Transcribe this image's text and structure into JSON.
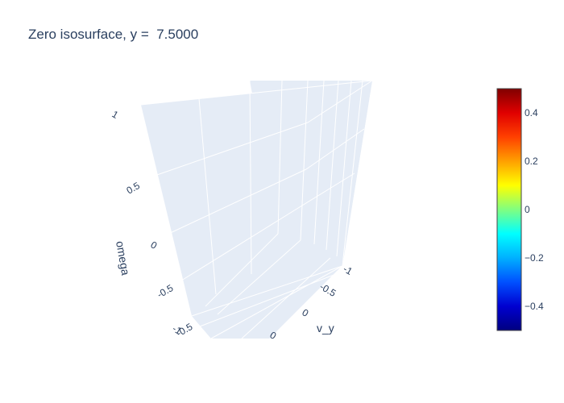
{
  "chart_data": {
    "type": "isosurface",
    "title": "Zero isosurface, y =  7.5000",
    "axes": {
      "x": {
        "label": "",
        "ticks": [
          "-0.5",
          "0"
        ]
      },
      "y": {
        "label": "v_y",
        "ticks": [
          "-1",
          "-0.5",
          "0"
        ]
      },
      "z": {
        "label": "omega",
        "ticks": [
          "-1",
          "-0.5",
          "0",
          "0.5",
          "1"
        ]
      }
    },
    "colorbar": {
      "range": [
        -0.5,
        0.5
      ],
      "ticks": [
        "0.4",
        "0.2",
        "0",
        "−0.2",
        "−0.4"
      ],
      "tick_values": [
        0.4,
        0.2,
        0,
        -0.2,
        -0.4
      ],
      "colorscale": "jet",
      "stops": [
        "#000080",
        "#0000d0",
        "#0050ff",
        "#00b0ff",
        "#00ffff",
        "#80ff80",
        "#ffff00",
        "#ffa000",
        "#ff4000",
        "#e00000",
        "#800000"
      ]
    },
    "isosurface_value": 0,
    "pane_color": "#e5ecf6",
    "grid_color": "#ffffff"
  }
}
